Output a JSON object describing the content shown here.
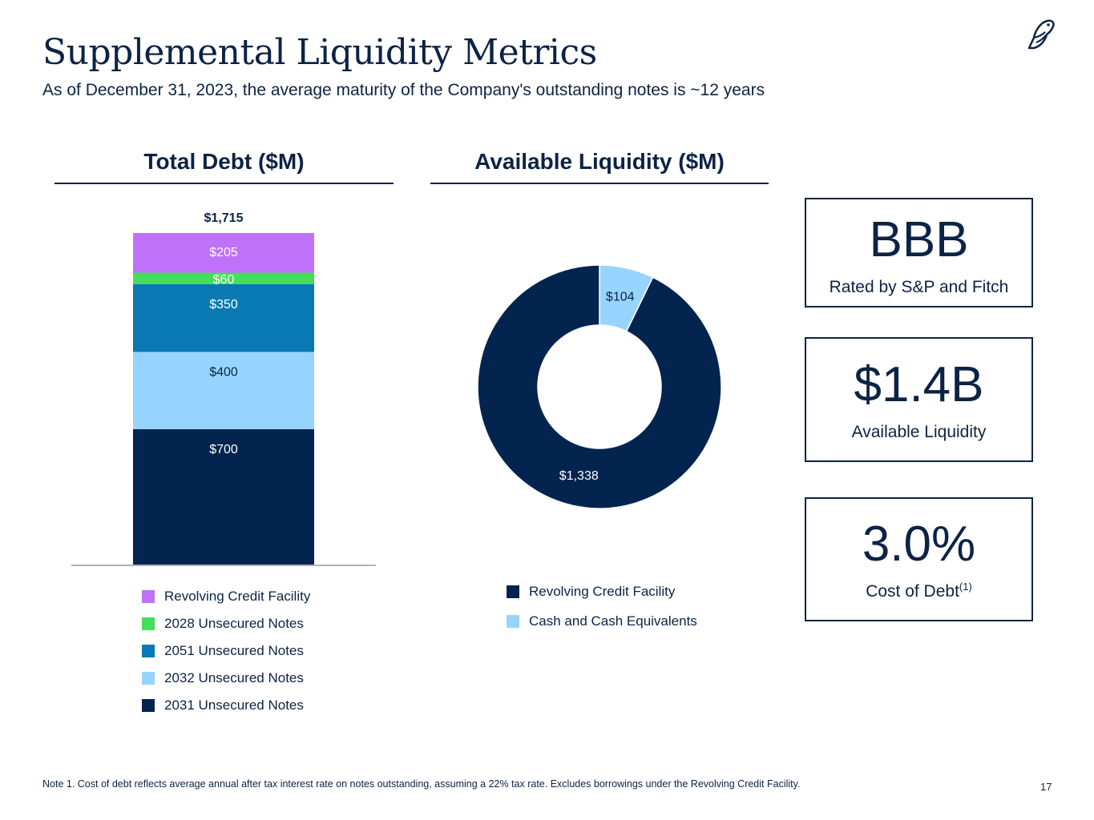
{
  "header": {
    "title": "Supplemental Liquidity Metrics",
    "subtitle": "As of December 31, 2023, the average maturity of the Company's outstanding notes is ~12 years"
  },
  "total_debt": {
    "title": "Total Debt ($M)",
    "total_label": "$1,715"
  },
  "available_liquidity": {
    "title": "Available Liquidity ($M)"
  },
  "chart_data": [
    {
      "type": "bar",
      "stacked": true,
      "title": "Total Debt ($M)",
      "total": 1715,
      "total_label": "$1,715",
      "ylim": [
        0,
        1715
      ],
      "series": [
        {
          "name": "2031 Unsecured Notes",
          "value": 700,
          "label": "$700",
          "color": "#03244f",
          "label_color": "#ffffff"
        },
        {
          "name": "2032 Unsecured Notes",
          "value": 400,
          "label": "$400",
          "color": "#96d4fd",
          "label_color": "#0c2346"
        },
        {
          "name": "2051 Unsecured Notes",
          "value": 350,
          "label": "$350",
          "color": "#0879b3",
          "label_color": "#ffffff"
        },
        {
          "name": "2028 Unsecured Notes",
          "value": 60,
          "label": "$60",
          "color": "#46dc5c",
          "label_color": "#ffffff"
        },
        {
          "name": "Revolving Credit Facility",
          "value": 205,
          "label": "$205",
          "color": "#bf71f9",
          "label_color": "#ffffff"
        }
      ],
      "legend": [
        {
          "name": "Revolving Credit Facility",
          "color": "#bf71f9"
        },
        {
          "name": "2028 Unsecured Notes",
          "color": "#46dc5c"
        },
        {
          "name": "2051 Unsecured Notes",
          "color": "#0879b3"
        },
        {
          "name": "2032 Unsecured Notes",
          "color": "#96d4fd"
        },
        {
          "name": "2031 Unsecured Notes",
          "color": "#03244f"
        }
      ]
    },
    {
      "type": "pie",
      "donut": true,
      "title": "Available Liquidity ($M)",
      "slices": [
        {
          "name": "Cash and Cash Equivalents",
          "value": 104,
          "label": "$104",
          "color": "#96d4fd",
          "label_color": "#0c2346"
        },
        {
          "name": "Revolving Credit Facility",
          "value": 1338,
          "label": "$1,338",
          "color": "#03244f",
          "label_color": "#ffffff"
        }
      ],
      "legend": [
        {
          "name": "Revolving Credit Facility",
          "color": "#03244f"
        },
        {
          "name": "Cash and Cash Equivalents",
          "color": "#96d4fd"
        }
      ]
    }
  ],
  "metrics": [
    {
      "value": "BBB",
      "label": "Rated by S&P and Fitch",
      "sup": ""
    },
    {
      "value": "$1.4B",
      "label": "Available Liquidity",
      "sup": ""
    },
    {
      "value": "3.0%",
      "label": "Cost of Debt",
      "sup": "(1)"
    }
  ],
  "footnote": "Note 1. Cost of debt reflects average annual after tax interest rate on notes outstanding, assuming a 22% tax rate. Excludes borrowings under the Revolving Credit Facility.",
  "page_number": "17",
  "colors": {
    "navy": "#0c2346",
    "dark_navy": "#03244f",
    "light_blue": "#96d4fd",
    "teal_blue": "#0879b3",
    "green": "#46dc5c",
    "purple": "#bf71f9"
  }
}
